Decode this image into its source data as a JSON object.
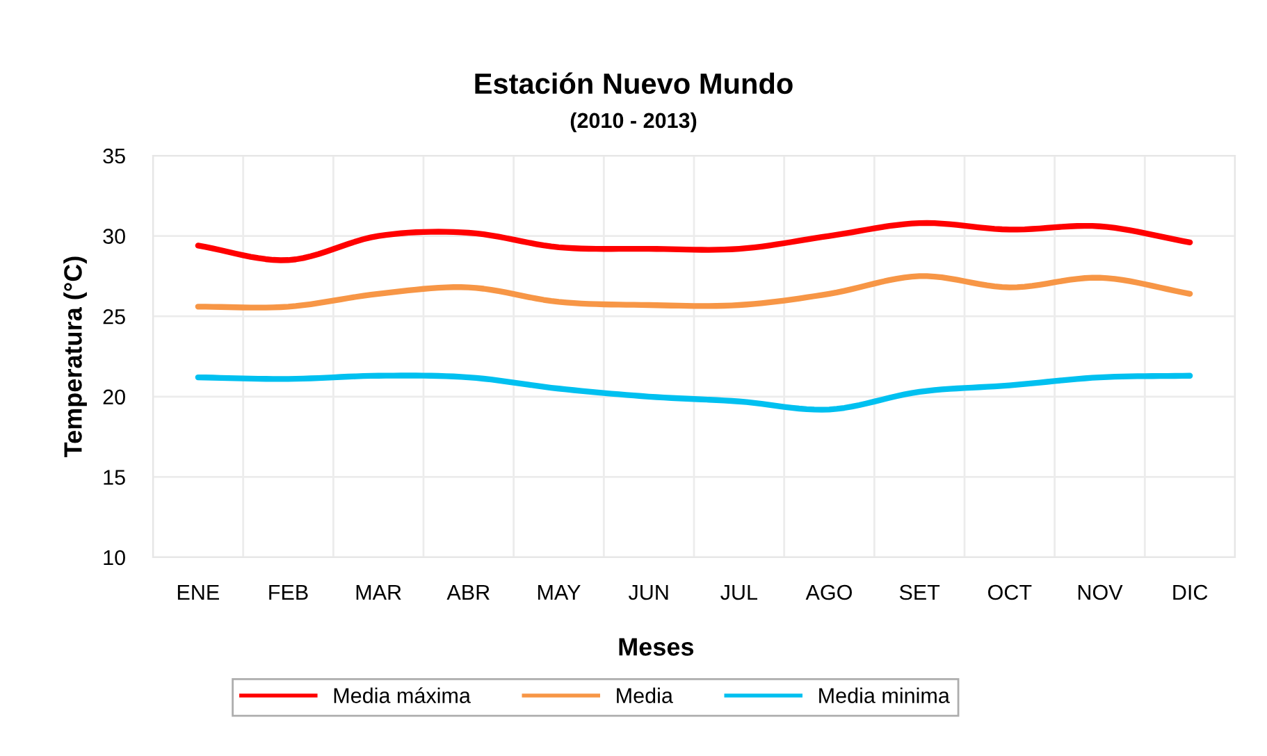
{
  "chart_data": {
    "type": "line",
    "title": "Estación Nuevo Mundo",
    "subtitle": "(2010 - 2013)",
    "xlabel": "Meses",
    "ylabel": "Temperatura (°C)",
    "categories": [
      "ENE",
      "FEB",
      "MAR",
      "ABR",
      "MAY",
      "JUN",
      "JUL",
      "AGO",
      "SET",
      "OCT",
      "NOV",
      "DIC"
    ],
    "series": [
      {
        "name": "Media máxima",
        "color": "#ff0000",
        "values": [
          29.4,
          28.5,
          30.0,
          30.2,
          29.3,
          29.2,
          29.2,
          30.0,
          30.8,
          30.4,
          30.6,
          29.6
        ]
      },
      {
        "name": "Media",
        "color": "#f79646",
        "values": [
          25.6,
          25.6,
          26.4,
          26.8,
          25.9,
          25.7,
          25.7,
          26.4,
          27.5,
          26.8,
          27.4,
          26.4
        ]
      },
      {
        "name": "Media minima",
        "color": "#00c0f0",
        "values": [
          21.2,
          21.1,
          21.3,
          21.2,
          20.5,
          20.0,
          19.7,
          19.2,
          20.3,
          20.7,
          21.2,
          21.3
        ]
      }
    ],
    "ylim": [
      10,
      35
    ],
    "yticks": [
      10,
      15,
      20,
      25,
      30,
      35
    ],
    "grid": true,
    "legend": "bottom",
    "marker": "none",
    "line_style": "solid"
  }
}
